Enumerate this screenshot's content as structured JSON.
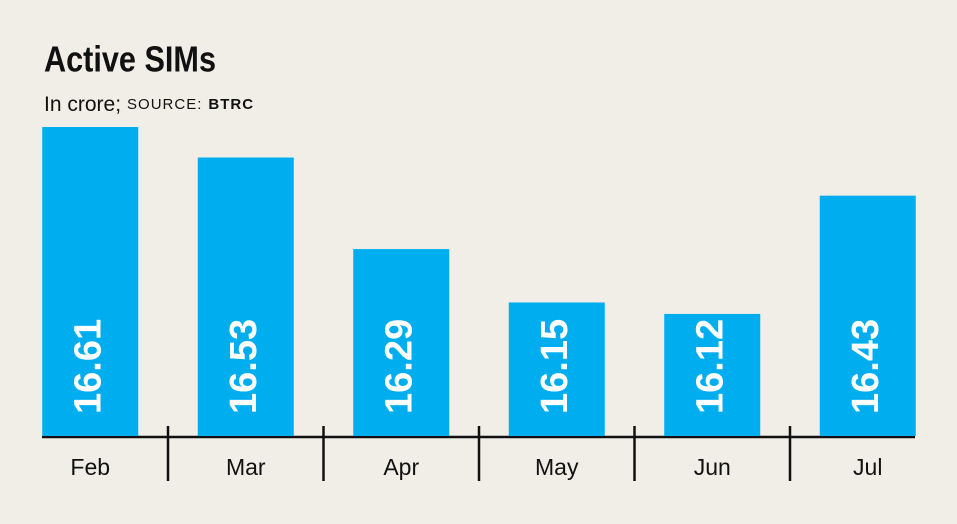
{
  "chart_data": {
    "type": "bar",
    "title": "Active SIMs",
    "subtitle": "In crore;",
    "source_label": "SOURCE:",
    "source": "BTRC",
    "categories": [
      "Feb",
      "Mar",
      "Apr",
      "May",
      "Jun",
      "Jul"
    ],
    "values": [
      16.61,
      16.53,
      16.29,
      16.15,
      16.12,
      16.43
    ],
    "color": "#00aeef",
    "ylim": [
      15.8,
      16.61
    ]
  }
}
